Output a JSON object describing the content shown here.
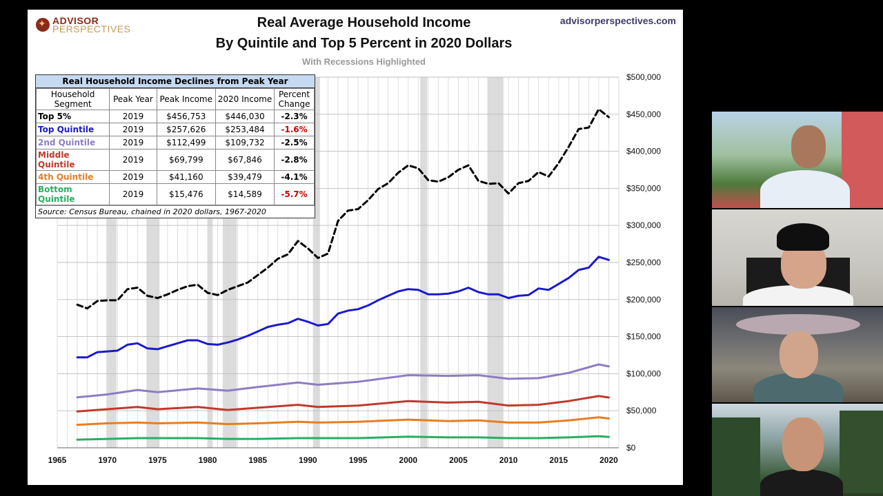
{
  "header": {
    "logo_line1": "ADVISOR",
    "logo_line2": "PERSPECTIVES",
    "site": "advisorperspectives.com",
    "title_line1": "Real Average Household Income",
    "title_line2": "By Quintile and Top 5 Percent in 2020  Dollars",
    "subtitle": "With Recessions Highlighted"
  },
  "table": {
    "title": "Real Household Income Declines from Peak Year",
    "columns": [
      "Household Segment",
      "Peak Year",
      "Peak Income",
      "2020 Income",
      "Percent Change"
    ],
    "rows": [
      {
        "segment": "Top 5%",
        "peak_year": "2019",
        "peak_income": "$456,753",
        "income_2020": "$446,030",
        "pct": "-2.3%",
        "color": "#000000",
        "pct_color": "#000000"
      },
      {
        "segment": "Top Quintile",
        "peak_year": "2019",
        "peak_income": "$257,626",
        "income_2020": "$253,484",
        "pct": "-1.6%",
        "color": "#1a1acc",
        "pct_color": "#cc0000"
      },
      {
        "segment": "2nd Quintile",
        "peak_year": "2019",
        "peak_income": "$112,499",
        "income_2020": "$109,732",
        "pct": "-2.5%",
        "color": "#8e7cc3",
        "pct_color": "#000000"
      },
      {
        "segment": "Middle Quintile",
        "peak_year": "2019",
        "peak_income": "$69,799",
        "income_2020": "$67,846",
        "pct": "-2.8%",
        "color": "#c0392b",
        "pct_color": "#000000"
      },
      {
        "segment": "4th Quintile",
        "peak_year": "2019",
        "peak_income": "$41,160",
        "income_2020": "$39,479",
        "pct": "-4.1%",
        "color": "#e67e22",
        "pct_color": "#000000"
      },
      {
        "segment": "Bottom Quintile",
        "peak_year": "2019",
        "peak_income": "$15,476",
        "income_2020": "$14,589",
        "pct": "-5.7%",
        "color": "#27ae60",
        "pct_color": "#cc0000"
      }
    ],
    "source": "Source: Census Bureau, chained in 2020 dollars, 1967-2020"
  },
  "chart_data": {
    "type": "line",
    "title": "Real Average Household Income By Quintile and Top 5 Percent in 2020  Dollars",
    "xlabel": "",
    "ylabel": "",
    "xlim": [
      1965,
      2021
    ],
    "ylim": [
      0,
      500000
    ],
    "x_ticks": [
      1965,
      1970,
      1975,
      1980,
      1985,
      1990,
      1995,
      2000,
      2005,
      2010,
      2015,
      2020
    ],
    "y_ticks": [
      0,
      50000,
      100000,
      150000,
      200000,
      250000,
      300000,
      350000,
      400000,
      450000,
      500000
    ],
    "y_tick_labels": [
      "$0",
      "$50,000",
      "$100,000",
      "$150,000",
      "$200,000",
      "$250,000",
      "$300,000",
      "$350,000",
      "$400,000",
      "$450,000",
      "$500,000"
    ],
    "y_axis_side": "right",
    "grid": true,
    "recessions": [
      [
        1969.9,
        1970.9
      ],
      [
        1973.9,
        1975.2
      ],
      [
        1980.0,
        1980.5
      ],
      [
        1981.5,
        1982.9
      ],
      [
        1990.5,
        1991.2
      ],
      [
        2001.2,
        2001.9
      ],
      [
        2007.9,
        2009.5
      ]
    ],
    "series": [
      {
        "name": "Top 5%",
        "color": "#000000",
        "dashed": true,
        "x": [
          1967,
          1968,
          1969,
          1970,
          1971,
          1972,
          1973,
          1974,
          1975,
          1976,
          1977,
          1978,
          1979,
          1980,
          1981,
          1982,
          1983,
          1984,
          1985,
          1986,
          1987,
          1988,
          1989,
          1990,
          1991,
          1992,
          1993,
          1994,
          1995,
          1996,
          1997,
          1998,
          1999,
          2000,
          2001,
          2002,
          2003,
          2004,
          2005,
          2006,
          2007,
          2008,
          2009,
          2010,
          2011,
          2012,
          2013,
          2014,
          2015,
          2016,
          2017,
          2018,
          2019,
          2020
        ],
        "y": [
          193000,
          188000,
          198000,
          199000,
          199000,
          214000,
          216000,
          205000,
          202000,
          207000,
          213000,
          218000,
          220000,
          209000,
          206000,
          213000,
          218000,
          223000,
          233000,
          243000,
          255000,
          261000,
          279000,
          269000,
          256000,
          262000,
          306000,
          320000,
          322000,
          334000,
          349000,
          357000,
          371000,
          381000,
          377000,
          361000,
          359000,
          365000,
          375000,
          381000,
          360000,
          356000,
          357000,
          343000,
          357000,
          360000,
          372000,
          366000,
          384000,
          406000,
          430000,
          432000,
          456753,
          446030
        ]
      },
      {
        "name": "Top Quintile",
        "color": "#1a1acc",
        "dashed": false,
        "x": [
          1967,
          1968,
          1969,
          1970,
          1971,
          1972,
          1973,
          1974,
          1975,
          1976,
          1977,
          1978,
          1979,
          1980,
          1981,
          1982,
          1983,
          1984,
          1985,
          1986,
          1987,
          1988,
          1989,
          1990,
          1991,
          1992,
          1993,
          1994,
          1995,
          1996,
          1997,
          1998,
          1999,
          2000,
          2001,
          2002,
          2003,
          2004,
          2005,
          2006,
          2007,
          2008,
          2009,
          2010,
          2011,
          2012,
          2013,
          2014,
          2015,
          2016,
          2017,
          2018,
          2019,
          2020
        ],
        "y": [
          122000,
          122000,
          129000,
          130000,
          131000,
          139000,
          141000,
          134000,
          133000,
          137000,
          141000,
          145000,
          145000,
          140000,
          139000,
          142000,
          146000,
          151000,
          157000,
          163000,
          166000,
          168000,
          174000,
          170000,
          165000,
          167000,
          181000,
          185000,
          187000,
          192000,
          199000,
          205000,
          211000,
          214000,
          213000,
          207000,
          207000,
          208000,
          211000,
          216000,
          210000,
          207000,
          207000,
          202000,
          205000,
          206000,
          215000,
          213000,
          221000,
          229000,
          240000,
          243000,
          257626,
          253484
        ]
      },
      {
        "name": "2nd Quintile",
        "color": "#8e7cc3",
        "dashed": false,
        "x": [
          1967,
          1970,
          1973,
          1975,
          1979,
          1982,
          1985,
          1989,
          1991,
          1995,
          2000,
          2004,
          2007,
          2010,
          2013,
          2016,
          2019,
          2020
        ],
        "y": [
          68000,
          72000,
          78000,
          75000,
          80000,
          77000,
          82000,
          88000,
          85000,
          89000,
          98000,
          97000,
          98000,
          93000,
          94000,
          101000,
          112499,
          109732
        ]
      },
      {
        "name": "Middle Quintile",
        "color": "#c0392b",
        "dashed": false,
        "x": [
          1967,
          1970,
          1973,
          1975,
          1979,
          1982,
          1985,
          1989,
          1991,
          1995,
          2000,
          2004,
          2007,
          2010,
          2013,
          2016,
          2019,
          2020
        ],
        "y": [
          49000,
          52000,
          55000,
          52000,
          55000,
          51000,
          54000,
          58000,
          55000,
          57000,
          63000,
          61000,
          62000,
          57000,
          58000,
          63000,
          69799,
          67846
        ]
      },
      {
        "name": "4th Quintile",
        "color": "#e67e22",
        "dashed": false,
        "x": [
          1967,
          1970,
          1973,
          1975,
          1979,
          1982,
          1985,
          1989,
          1991,
          1995,
          2000,
          2004,
          2007,
          2010,
          2013,
          2016,
          2019,
          2020
        ],
        "y": [
          31000,
          33000,
          34000,
          33000,
          34000,
          32000,
          33000,
          35000,
          34000,
          35000,
          38000,
          36000,
          37000,
          34000,
          34000,
          37000,
          41160,
          39479
        ]
      },
      {
        "name": "Bottom Quintile",
        "color": "#27ae60",
        "dashed": false,
        "x": [
          1967,
          1970,
          1973,
          1975,
          1979,
          1982,
          1985,
          1989,
          1991,
          1995,
          2000,
          2004,
          2007,
          2010,
          2013,
          2016,
          2019,
          2020
        ],
        "y": [
          11000,
          12000,
          13000,
          13000,
          13000,
          12000,
          12000,
          13000,
          13000,
          13000,
          15000,
          14000,
          14000,
          13000,
          13000,
          14000,
          15476,
          14589
        ]
      }
    ]
  }
}
